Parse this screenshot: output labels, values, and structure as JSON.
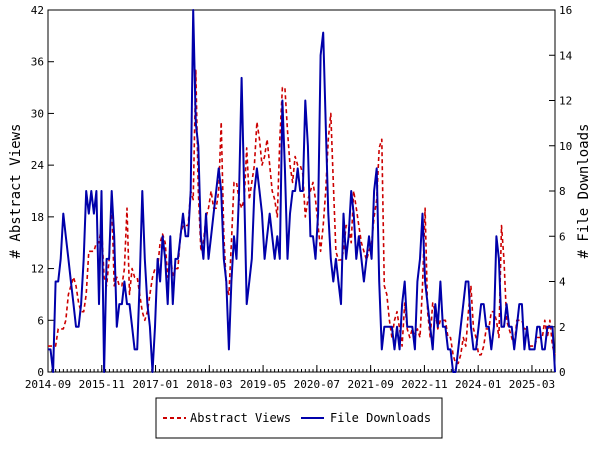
{
  "chart_data": {
    "type": "line",
    "x_ticks": [
      "2014-09",
      "2015-11",
      "2017-01",
      "2018-03",
      "2019-05",
      "2020-07",
      "2021-09",
      "2022-11",
      "2024-01",
      "2025-03"
    ],
    "x_range": [
      "2014-09",
      "2025-09"
    ],
    "y_left": {
      "label": "# Abstract Views",
      "range": [
        0,
        42
      ],
      "ticks": [
        "0",
        "6",
        "12",
        "18",
        "24",
        "30",
        "36",
        "42"
      ]
    },
    "y_right": {
      "label": "# File Downloads",
      "range": [
        0,
        16
      ],
      "ticks": [
        "0",
        "2",
        "4",
        "6",
        "8",
        "10",
        "12",
        "14",
        "16"
      ]
    },
    "grid": false,
    "legend_position": "bottom-center",
    "series": [
      {
        "name": "Abstract Views",
        "axis": "left",
        "color": "#cc0000",
        "style": "dashed",
        "values": [
          3,
          3,
          3,
          3,
          5,
          5,
          5,
          6,
          9,
          10,
          11,
          10,
          8,
          7,
          7,
          9,
          14,
          14,
          14,
          15,
          15,
          17,
          11,
          10,
          13,
          20,
          10,
          11,
          10,
          10,
          12,
          19,
          9,
          12,
          11,
          11,
          9,
          7,
          6,
          7,
          9,
          11,
          12,
          12,
          15,
          16,
          15,
          11,
          14,
          11,
          12,
          12,
          16,
          17,
          17,
          17,
          21,
          20,
          35,
          21,
          14,
          15,
          18,
          19,
          21,
          19,
          19,
          21,
          29,
          16,
          10,
          9,
          15,
          22,
          22,
          20,
          19,
          20,
          26,
          20,
          22,
          24,
          29,
          27,
          24,
          25,
          27,
          24,
          21,
          20,
          18,
          27,
          33,
          33,
          28,
          24,
          22,
          25,
          24,
          24,
          23,
          18,
          20,
          21,
          22,
          20,
          17,
          14,
          17,
          21,
          27,
          30,
          22,
          14,
          13,
          13,
          14,
          17,
          17,
          15,
          21,
          19,
          17,
          15,
          14,
          13,
          14,
          15,
          18,
          20,
          26,
          27,
          10,
          9,
          6,
          4,
          6,
          7,
          5,
          3,
          8,
          5,
          4,
          5,
          4,
          5,
          4,
          10,
          19,
          7,
          4,
          8,
          7,
          5,
          6,
          6,
          6,
          4,
          4,
          2,
          1,
          1,
          2,
          4,
          3,
          7,
          10,
          5,
          4,
          2,
          2,
          3,
          5,
          5,
          7,
          7,
          6,
          4,
          17,
          13,
          6,
          5,
          4,
          3,
          6,
          6,
          6,
          5,
          5,
          3,
          3,
          3,
          4,
          4,
          4,
          6,
          4,
          6,
          3,
          2
        ],
        "range_note": ""
      },
      {
        "name": "File Downloads",
        "axis": "right",
        "color": "#0000aa",
        "style": "solid",
        "values": [
          1,
          1,
          0,
          4,
          4,
          5,
          7,
          6,
          5,
          4,
          3,
          2,
          2,
          3,
          5,
          8,
          7,
          8,
          7,
          8,
          3,
          8,
          0,
          5,
          5,
          8,
          6,
          2,
          3,
          3,
          4,
          3,
          3,
          2,
          1,
          1,
          4,
          8,
          5,
          3,
          2,
          0,
          2,
          5,
          4,
          6,
          5,
          3,
          6,
          3,
          5,
          5,
          6,
          7,
          6,
          6,
          8,
          16,
          11,
          10,
          6,
          5,
          7,
          5,
          6,
          7,
          8,
          9,
          8,
          5,
          4,
          1,
          4,
          6,
          5,
          8,
          13,
          8,
          3,
          4,
          5,
          8,
          9,
          8,
          7,
          5,
          6,
          7,
          6,
          5,
          6,
          5,
          12,
          9,
          5,
          7,
          8,
          8,
          9,
          8,
          8,
          12,
          10,
          6,
          6,
          5,
          7,
          14,
          15,
          11,
          7,
          5,
          4,
          5,
          4,
          3,
          7,
          5,
          6,
          8,
          7,
          5,
          6,
          5,
          4,
          5,
          6,
          5,
          8,
          9,
          4,
          1,
          2,
          2,
          2,
          2,
          1,
          2,
          1,
          3,
          4,
          2,
          2,
          2,
          1,
          4,
          5,
          7,
          4,
          3,
          2,
          1,
          3,
          2,
          4,
          2,
          2,
          1,
          1,
          0,
          0,
          1,
          2,
          3,
          4,
          4,
          2,
          1,
          1,
          2,
          3,
          3,
          2,
          2,
          1,
          2,
          6,
          5,
          2,
          2,
          3,
          2,
          2,
          1,
          2,
          3,
          3,
          1,
          2,
          1,
          1,
          1,
          2,
          2,
          1,
          1,
          2,
          2,
          2,
          0
        ]
      }
    ]
  }
}
